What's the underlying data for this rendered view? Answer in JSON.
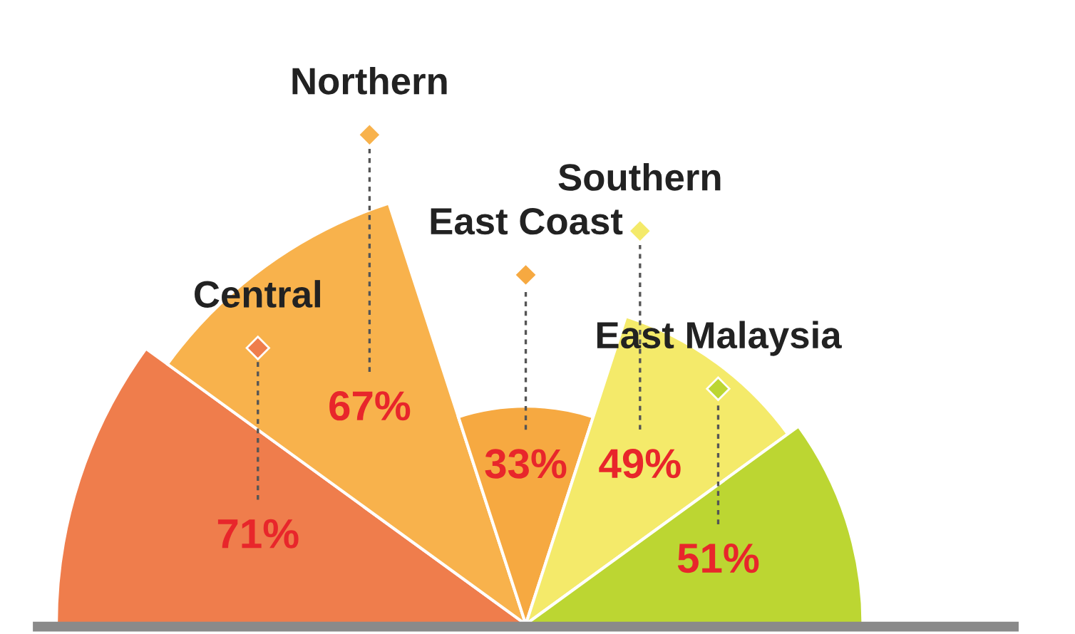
{
  "chart_data": {
    "type": "other",
    "categories": [
      "Central",
      "Northern",
      "East Coast",
      "Southern",
      "East Malaysia"
    ],
    "values": [
      71,
      67,
      33,
      49,
      51
    ],
    "value_labels": [
      "71%",
      "67%",
      "33%",
      "49%",
      "51%"
    ],
    "colors": [
      "#ef7d4c",
      "#f8b24c",
      "#f6a941",
      "#f4ea6a",
      "#bcd632"
    ]
  }
}
